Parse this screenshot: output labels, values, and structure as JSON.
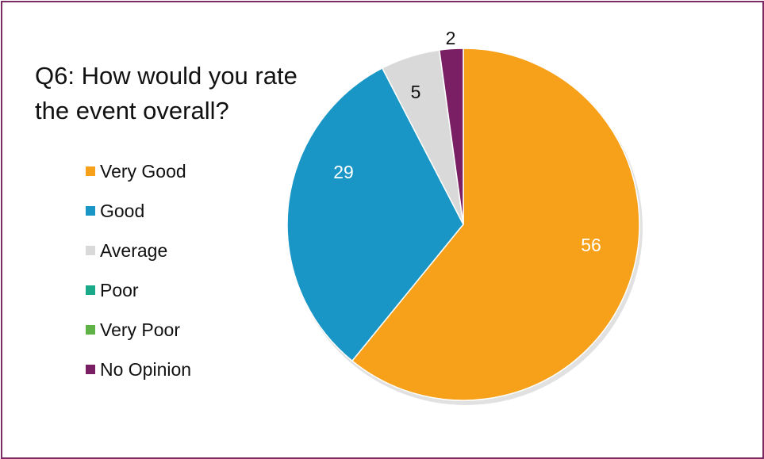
{
  "chart_data": {
    "type": "pie",
    "title_lines": [
      "Q6: How would you rate",
      "the event overall?"
    ],
    "legend_position": "left",
    "slices": [
      {
        "label": "Very Good",
        "value": 56,
        "color": "#f7a11a",
        "text_color": "#ffffff",
        "show_label": true
      },
      {
        "label": "Good",
        "value": 29,
        "color": "#1a96c6",
        "text_color": "#ffffff",
        "show_label": true
      },
      {
        "label": "Average",
        "value": 5,
        "color": "#d9d9d9",
        "text_color": "#111111",
        "show_label": true
      },
      {
        "label": "Poor",
        "value": 0,
        "color": "#1aaa8a",
        "text_color": "#111111",
        "show_label": false
      },
      {
        "label": "Very Poor",
        "value": 0,
        "color": "#5fb246",
        "text_color": "#111111",
        "show_label": false
      },
      {
        "label": "No Opinion",
        "value": 2,
        "color": "#7a1f63",
        "text_color": "#111111",
        "show_label": true
      }
    ]
  }
}
